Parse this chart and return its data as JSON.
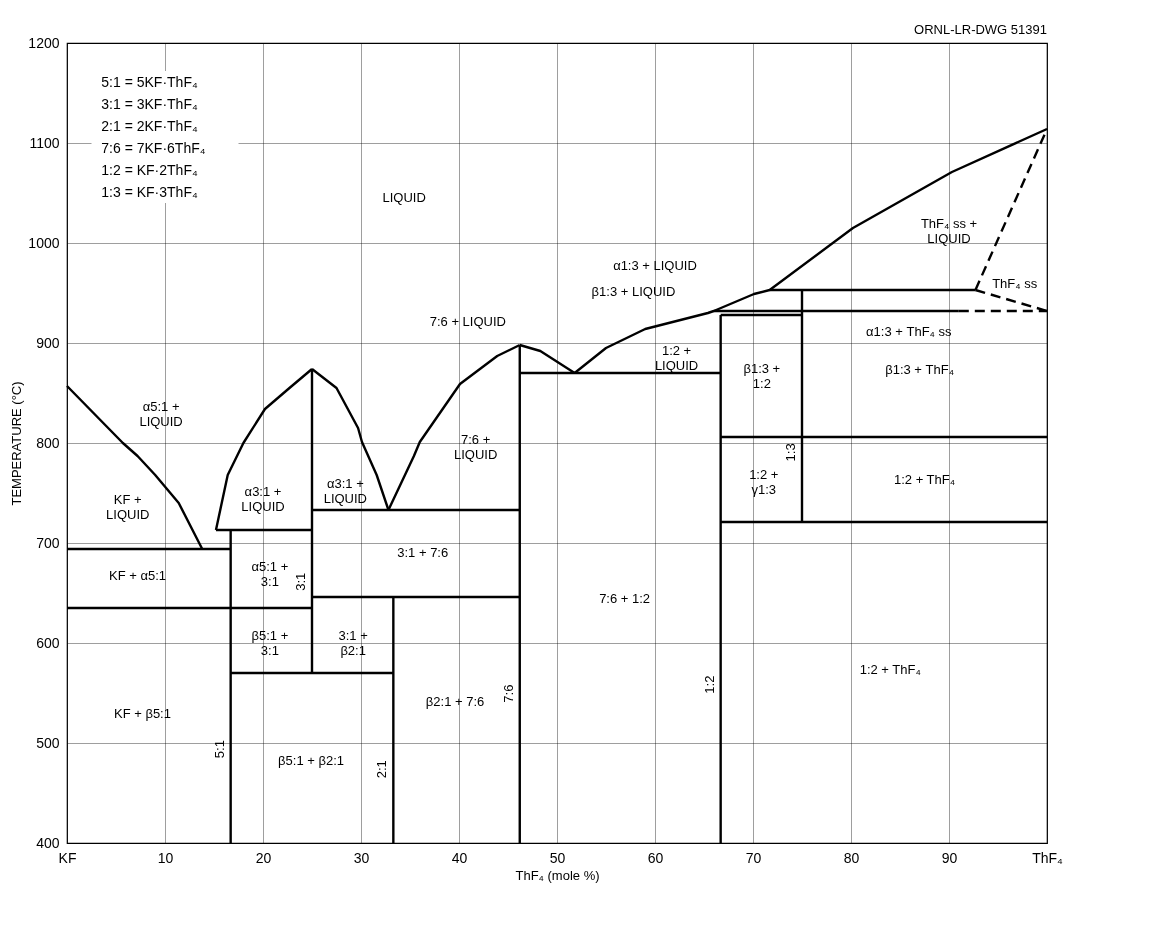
{
  "chart_data": {
    "type": "line",
    "xlabel": "ThF₄ (mole %)",
    "ylabel": "TEMPERATURE (°C)",
    "xlim": [
      0,
      100
    ],
    "xticks": [
      {
        "value": 0,
        "label": "KF"
      },
      10,
      20,
      30,
      40,
      50,
      60,
      70,
      80,
      90,
      {
        "value": 100,
        "label": "ThF₄"
      }
    ],
    "ylim": [
      400,
      1200
    ],
    "yticks": [
      400,
      500,
      600,
      700,
      800,
      900,
      {
        "value": 1000,
        "label": "1000"
      },
      {
        "value": 1100,
        "label": "1100"
      },
      {
        "value": 1200,
        "label": "1200"
      }
    ],
    "grid": true,
    "marker": "none",
    "series": [
      {
        "color": "#000000",
        "x": [
          0,
          5.7,
          7.2,
          9,
          11.4,
          13.8
        ],
        "values": [
          857,
          800,
          787,
          768,
          740,
          694
        ]
      },
      {
        "color": "#000000",
        "x": [
          15.2,
          16.4,
          18,
          20.2,
          22.7,
          25
        ],
        "values": [
          713,
          768,
          800,
          834,
          855,
          874
        ]
      },
      {
        "color": "#000000",
        "x": [
          25,
          27.5,
          29.7,
          30.1,
          31.6,
          32.8
        ],
        "values": [
          874,
          855,
          815,
          801,
          768,
          733
        ]
      },
      {
        "color": "#000000",
        "x": [
          32.8,
          35.4,
          36,
          40.1,
          43.9,
          46.2
        ],
        "values": [
          733,
          787,
          801,
          859,
          887,
          898
        ]
      },
      {
        "color": "#000000",
        "x": [
          46.2,
          48.3,
          51.8
        ],
        "values": [
          898,
          892,
          870
        ]
      },
      {
        "color": "#000000",
        "x": [
          51.8,
          55,
          59,
          65.4,
          66,
          70.1,
          71.7,
          80.2,
          90.3,
          100
        ],
        "values": [
          870,
          895,
          914,
          930,
          932,
          949,
          953,
          1015,
          1071,
          1114
        ]
      },
      {
        "color": "#000000",
        "x": [
          0,
          16.7
        ],
        "values": [
          694,
          694
        ]
      },
      {
        "color": "#000000",
        "x": [
          0,
          25
        ],
        "values": [
          635,
          635
        ]
      },
      {
        "color": "#000000",
        "x": [
          15.2,
          25
        ],
        "values": [
          713,
          713
        ]
      },
      {
        "color": "#000000",
        "x": [
          16.7,
          33.3
        ],
        "values": [
          570,
          570
        ]
      },
      {
        "color": "#000000",
        "x": [
          25,
          46.2
        ],
        "values": [
          733,
          733
        ]
      },
      {
        "color": "#000000",
        "x": [
          25,
          46.2
        ],
        "values": [
          646,
          646
        ]
      },
      {
        "color": "#000000",
        "x": [
          46.2,
          66.7
        ],
        "values": [
          870,
          870
        ]
      },
      {
        "color": "#000000",
        "x": [
          66.7,
          75
        ],
        "values": [
          928,
          928
        ]
      },
      {
        "color": "#000000",
        "x": [
          66,
          91
        ],
        "values": [
          932,
          932
        ]
      },
      {
        "color": "#000000",
        "x": [
          71.7,
          92.7
        ],
        "values": [
          953,
          953
        ]
      },
      {
        "color": "#000000",
        "x": [
          66.7,
          100
        ],
        "values": [
          806,
          806
        ]
      },
      {
        "color": "#000000",
        "x": [
          66.7,
          100
        ],
        "values": [
          721,
          721
        ]
      },
      {
        "name": "5:1",
        "color": "#000000",
        "x": [
          16.7,
          16.7
        ],
        "values": [
          400,
          713
        ]
      },
      {
        "name": "3:1",
        "color": "#000000",
        "x": [
          25,
          25
        ],
        "values": [
          570,
          874
        ]
      },
      {
        "name": "2:1",
        "color": "#000000",
        "x": [
          33.3,
          33.3
        ],
        "values": [
          400,
          646
        ]
      },
      {
        "name": "7:6",
        "color": "#000000",
        "x": [
          46.2,
          46.2
        ],
        "values": [
          400,
          898
        ]
      },
      {
        "name": "1:2",
        "color": "#000000",
        "x": [
          66.7,
          66.7
        ],
        "values": [
          400,
          928
        ]
      },
      {
        "name": "1:3",
        "color": "#000000",
        "x": [
          75,
          75
        ],
        "values": [
          721,
          953
        ]
      },
      {
        "color": "#000000",
        "line_style": "dashed",
        "x": [
          92.7,
          100
        ],
        "values": [
          953,
          1114
        ]
      },
      {
        "color": "#000000",
        "line_style": "dashed",
        "x": [
          92.7,
          100
        ],
        "values": [
          953,
          932
        ]
      },
      {
        "color": "#000000",
        "line_style": "dashed",
        "x": [
          91,
          100
        ],
        "values": [
          932,
          932
        ]
      }
    ],
    "annotations": [
      "ORNL-LR-DWG 51391",
      "5:1 = 5KF·ThF₄",
      "3:1 = 3KF·ThF₄",
      "2:1 = 2KF·ThF₄",
      "7:6 = 7KF·6ThF₄",
      "1:2 = KF·2ThF₄",
      "1:3 = KF·3ThF₄",
      "LIQUID",
      "KF +\nLIQUID",
      "α5:1 +\nLIQUID",
      "α3:1 +\nLIQUID",
      "α3:1 +\nLIQUID",
      "7:6 +\nLIQUID",
      "7:6 + LIQUID",
      "α1:3 + LIQUID",
      "β1:3 + LIQUID",
      "1:2 +\nLIQUID",
      "ThF₄ ss +\nLIQUID",
      "ThF₄ ss",
      "α1:3 + ThF₄ ss",
      "β1:3 + ThF₄",
      "β1:3 +\n1:2",
      "1:2 +\nγ1:3",
      "1:2 + ThF₄",
      "KF + α5:1",
      "α5:1 +\n3:1",
      "3:1 + 7:6",
      "β5:1 +\n3:1",
      "3:1 +\nβ2:1",
      "7:6 + 1:2",
      "1:2 + ThF₄",
      "KF + β5:1",
      "β2:1 + 7:6",
      "β5:1 + β2:1"
    ]
  }
}
